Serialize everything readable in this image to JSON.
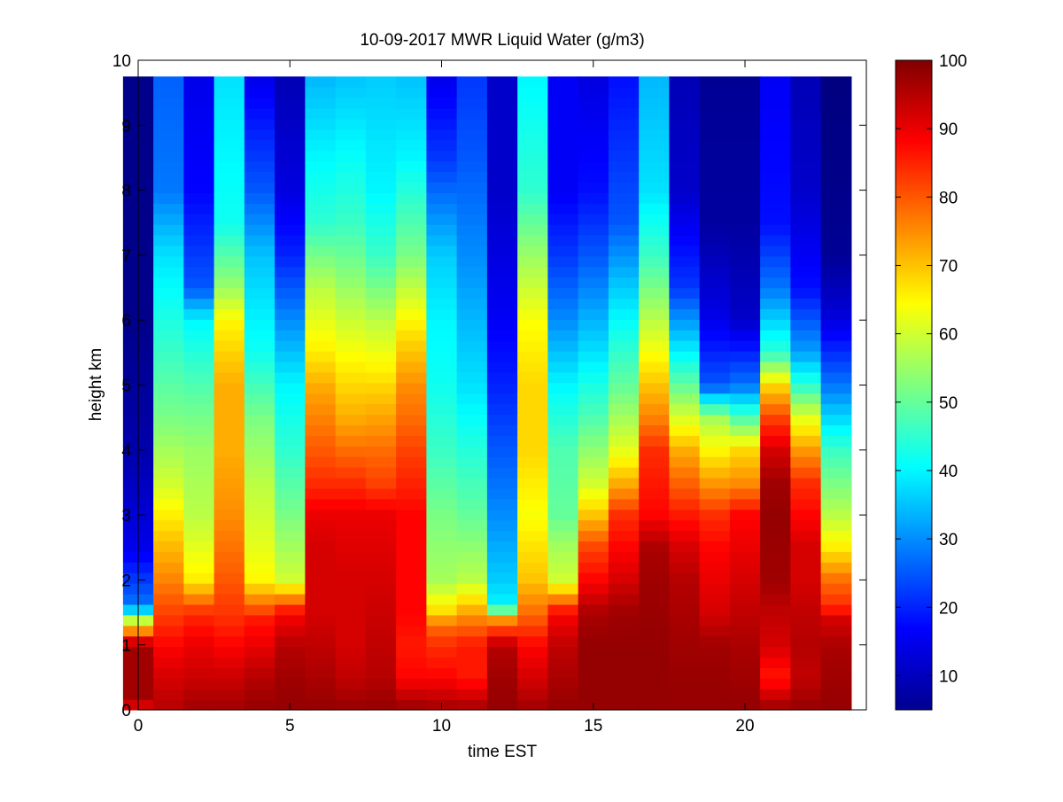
{
  "chart_data": {
    "type": "heatmap",
    "title": "10-09-2017 MWR Liquid Water (g/m3)",
    "xlabel": "time EST",
    "ylabel": "height km",
    "xlim": [
      0,
      24
    ],
    "ylim": [
      0,
      10
    ],
    "clim": [
      5,
      100
    ],
    "colormap": "jet",
    "colorbar_ticks": [
      10,
      20,
      30,
      40,
      50,
      60,
      70,
      80,
      90,
      100
    ],
    "x_ticks": [
      0,
      5,
      10,
      15,
      20
    ],
    "y_ticks": [
      0,
      1,
      2,
      3,
      4,
      5,
      6,
      7,
      8,
      9,
      10
    ],
    "time_hours": [
      0,
      1,
      2,
      3,
      4,
      5,
      6,
      7,
      8,
      9,
      10,
      11,
      12,
      13,
      14,
      15,
      16,
      17,
      18,
      19,
      20,
      21,
      22,
      23
    ],
    "height_top_km": 9.75,
    "profiles": [
      {
        "time": 0,
        "heights": [
          0,
          0.1,
          1.0,
          1.4,
          1.6,
          2.5,
          4.0,
          6.0,
          9.75
        ],
        "values": [
          72,
          97,
          97,
          57,
          28,
          15,
          9,
          6,
          6
        ]
      },
      {
        "time": 1,
        "heights": [
          0,
          0.5,
          1.0,
          1.5,
          2.0,
          2.8,
          3.5,
          4.5,
          5.5,
          7.0,
          8.0,
          9.75
        ],
        "values": [
          95,
          92,
          88,
          82,
          76,
          68,
          60,
          52,
          46,
          38,
          28,
          26
        ]
      },
      {
        "time": 2,
        "heights": [
          0,
          0.5,
          1.0,
          1.5,
          2.0,
          2.5,
          3.0,
          4.0,
          5.0,
          6.0,
          6.5,
          8.0,
          9.75
        ],
        "values": [
          97,
          93,
          90,
          84,
          66,
          62,
          58,
          55,
          48,
          40,
          25,
          17,
          15
        ]
      },
      {
        "time": 3,
        "heights": [
          0,
          0.5,
          1.0,
          1.4,
          2.0,
          3.0,
          4.0,
          5.0,
          6.0,
          6.5,
          7.5,
          9.75
        ],
        "values": [
          97,
          93,
          88,
          84,
          80,
          75,
          72,
          72,
          65,
          55,
          42,
          38
        ]
      },
      {
        "time": 4,
        "heights": [
          0,
          0.5,
          1.0,
          1.4,
          2.0,
          2.5,
          3.5,
          4.5,
          5.5,
          7.0,
          8.0,
          9.75
        ],
        "values": [
          98,
          95,
          90,
          86,
          65,
          62,
          58,
          52,
          42,
          35,
          25,
          15
        ]
      },
      {
        "time": 5,
        "heights": [
          0,
          0.5,
          1.0,
          1.5,
          2.0,
          3.0,
          4.0,
          5.0,
          6.0,
          7.0,
          8.0,
          9.75
        ],
        "values": [
          98,
          97,
          95,
          88,
          60,
          52,
          45,
          40,
          30,
          20,
          14,
          10
        ]
      },
      {
        "time": 6,
        "heights": [
          0,
          0.5,
          1.0,
          1.5,
          2.0,
          2.5,
          3.0,
          3.5,
          4.0,
          4.5,
          5.0,
          5.5,
          6.5,
          7.5,
          9.75
        ],
        "values": [
          98,
          96,
          94,
          92,
          92,
          92,
          90,
          84,
          80,
          76,
          72,
          66,
          58,
          45,
          34
        ]
      },
      {
        "time": 7,
        "heights": [
          0,
          0.5,
          1.0,
          1.5,
          2.0,
          3.0,
          3.5,
          4.0,
          4.5,
          5.5,
          6.5,
          7.5,
          9.75
        ],
        "values": [
          98,
          94,
          92,
          92,
          92,
          90,
          84,
          78,
          72,
          64,
          55,
          46,
          35
        ]
      },
      {
        "time": 8,
        "heights": [
          0,
          0.5,
          1.0,
          1.5,
          2.0,
          3.0,
          3.5,
          4.0,
          5.0,
          6.0,
          7.0,
          8.0,
          9.75
        ],
        "values": [
          98,
          95,
          94,
          93,
          92,
          90,
          82,
          78,
          68,
          58,
          46,
          40,
          36
        ]
      },
      {
        "time": 9,
        "heights": [
          0,
          0.5,
          1.0,
          1.5,
          2.0,
          3.0,
          4.0,
          4.5,
          5.0,
          6.0,
          7.0,
          8.5,
          9.75
        ],
        "values": [
          98,
          88,
          86,
          88,
          88,
          88,
          82,
          78,
          75,
          65,
          52,
          40,
          35
        ]
      },
      {
        "time": 10,
        "heights": [
          0,
          0.5,
          1.0,
          1.3,
          1.5,
          2.0,
          3.0,
          4.0,
          5.0,
          6.0,
          7.0,
          8.5,
          9.75
        ],
        "values": [
          97,
          88,
          84,
          78,
          68,
          56,
          52,
          46,
          42,
          40,
          36,
          22,
          15
        ]
      },
      {
        "time": 11,
        "heights": [
          0,
          0.5,
          1.0,
          1.4,
          2.0,
          3.0,
          4.0,
          5.0,
          6.0,
          7.0,
          8.5,
          9.75
        ],
        "values": [
          97,
          86,
          86,
          76,
          58,
          50,
          44,
          38,
          34,
          30,
          25,
          22
        ]
      },
      {
        "time": 12,
        "heights": [
          0,
          0.5,
          1.0,
          1.4,
          1.6,
          2.0,
          3.0,
          4.0,
          5.0,
          6.0,
          7.0,
          8.0,
          9.75
        ],
        "values": [
          98,
          97,
          95,
          74,
          40,
          36,
          30,
          25,
          20,
          16,
          14,
          12,
          12
        ]
      },
      {
        "time": 13,
        "heights": [
          0,
          0.5,
          1.0,
          1.5,
          2.0,
          3.0,
          4.0,
          5.0,
          6.0,
          7.0,
          8.0,
          9.75
        ],
        "values": [
          97,
          92,
          88,
          78,
          70,
          64,
          68,
          68,
          64,
          55,
          45,
          40
        ]
      },
      {
        "time": 14,
        "heights": [
          0,
          0.5,
          1.0,
          1.5,
          2.0,
          2.5,
          3.0,
          4.0,
          5.0,
          6.0,
          7.0,
          8.0,
          9.75
        ],
        "values": [
          98,
          96,
          94,
          88,
          60,
          56,
          50,
          48,
          40,
          30,
          22,
          16,
          16
        ]
      },
      {
        "time": 15,
        "heights": [
          0,
          0.5,
          1.0,
          1.5,
          2.0,
          2.5,
          3.0,
          3.5,
          4.5,
          5.5,
          7.0,
          8.0,
          9.75
        ],
        "values": [
          98,
          98,
          98,
          96,
          88,
          82,
          70,
          60,
          48,
          38,
          25,
          18,
          14
        ]
      },
      {
        "time": 16,
        "heights": [
          0,
          0.5,
          1.0,
          1.5,
          2.0,
          2.5,
          3.0,
          3.5,
          4.0,
          5.0,
          6.5,
          7.5,
          9.75
        ],
        "values": [
          98,
          98,
          98,
          97,
          92,
          88,
          84,
          72,
          62,
          50,
          36,
          25,
          18
        ]
      },
      {
        "time": 17,
        "heights": [
          0,
          1.0,
          2.0,
          2.5,
          3.0,
          4.0,
          4.5,
          5.0,
          6.0,
          7.0,
          8.0,
          9.75
        ],
        "values": [
          98,
          98,
          97,
          96,
          88,
          84,
          76,
          70,
          58,
          46,
          38,
          34
        ]
      },
      {
        "time": 18,
        "heights": [
          0,
          1.0,
          2.0,
          2.5,
          3.0,
          4.0,
          5.0,
          5.5,
          6.5,
          8.0,
          9.75
        ],
        "values": [
          98,
          97,
          95,
          92,
          86,
          72,
          50,
          40,
          22,
          12,
          10
        ]
      },
      {
        "time": 19,
        "heights": [
          0,
          1.0,
          1.5,
          2.0,
          2.5,
          3.0,
          3.5,
          4.5,
          5.0,
          6.0,
          7.5,
          9.75
        ],
        "values": [
          98,
          97,
          92,
          90,
          88,
          84,
          74,
          56,
          25,
          15,
          8,
          7
        ]
      },
      {
        "time": 20,
        "heights": [
          0,
          1.0,
          1.5,
          2.0,
          2.5,
          3.0,
          3.5,
          4.0,
          4.5,
          5.0,
          6.0,
          7.5,
          9.75
        ],
        "values": [
          98,
          96,
          94,
          92,
          90,
          88,
          75,
          68,
          48,
          28,
          12,
          8,
          7
        ]
      },
      {
        "time": 21,
        "heights": [
          0,
          0.5,
          1.0,
          1.5,
          2.0,
          3.0,
          3.5,
          4.0,
          4.5,
          5.0,
          5.5,
          6.5,
          7.5,
          9.75
        ],
        "values": [
          98,
          86,
          92,
          94,
          97,
          98,
          97,
          92,
          82,
          68,
          45,
          28,
          18,
          16
        ]
      },
      {
        "time": 22,
        "heights": [
          0,
          0.5,
          1.0,
          1.5,
          2.0,
          2.5,
          3.0,
          3.5,
          4.0,
          4.5,
          5.0,
          5.5,
          6.5,
          8.0,
          9.75
        ],
        "values": [
          98,
          94,
          95,
          94,
          92,
          92,
          88,
          84,
          74,
          62,
          45,
          32,
          18,
          12,
          10
        ]
      },
      {
        "time": 23,
        "heights": [
          0,
          0.5,
          1.0,
          1.4,
          1.6,
          2.0,
          2.5,
          3.0,
          4.0,
          5.0,
          6.0,
          7.0,
          8.0,
          9.75
        ],
        "values": [
          98,
          97,
          96,
          92,
          84,
          78,
          66,
          58,
          46,
          28,
          14,
          7,
          6,
          5
        ]
      }
    ]
  }
}
